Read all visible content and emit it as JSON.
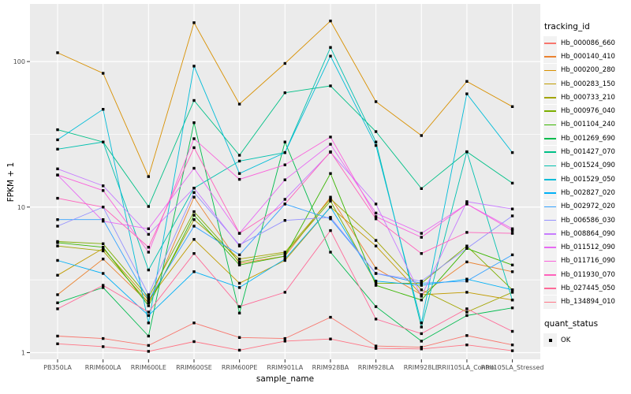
{
  "figure": {
    "panel_bg": "#EBEBEB",
    "grid_color": "#FFFFFF",
    "tick_color": "#333333",
    "tick_label_color": "#4D4D4D",
    "marker_color": "#000000"
  },
  "axes": {
    "x_title": "sample_name",
    "y_title": "FPKM + 1",
    "y_tick_labels": [
      "1",
      "10",
      "100"
    ]
  },
  "legend": {
    "tracking_title": "tracking_id",
    "quant_title": "quant_status",
    "quant_ok_label": "OK"
  },
  "chart_data": {
    "type": "line",
    "title": "",
    "xlabel": "sample_name",
    "ylabel": "FPKM + 1",
    "yscale": "log10",
    "ylim": [
      0.9,
      235
    ],
    "y_ticks": [
      1,
      10,
      100
    ],
    "y_minor_ticks": [
      3.1623,
      31.623
    ],
    "grid": true,
    "legend_position": "right",
    "legend_title": "tracking_id",
    "marker": "filled-square",
    "marker_legend": {
      "title": "quant_status",
      "items": [
        {
          "label": "OK",
          "shape": "filled-square",
          "color": "#000000"
        }
      ]
    },
    "categories": [
      "PB350LA",
      "RRIM600LA",
      "RRIM600LE",
      "RRIM600SE",
      "RRIM600PE",
      "RRIM901LA",
      "RRIM928BA",
      "RRIM928LA",
      "RRIM928LE",
      "RRII105LA_Control",
      "RRII105LA_Stressed"
    ],
    "series": [
      {
        "name": "Hb_000086_660",
        "color": "#F8766D",
        "values": [
          1.3,
          1.25,
          1.12,
          1.6,
          1.27,
          1.25,
          1.75,
          1.11,
          1.09,
          1.31,
          1.13
        ]
      },
      {
        "name": "Hb_000140_410",
        "color": "#EA8331",
        "values": [
          2.5,
          4.4,
          2.2,
          11.7,
          4.1,
          4.6,
          11.7,
          3.8,
          2.5,
          4.2,
          3.6
        ]
      },
      {
        "name": "Hb_000200_280",
        "color": "#D89000",
        "values": [
          115,
          83,
          16.2,
          185,
          51,
          97,
          190,
          53,
          31,
          73,
          49
        ]
      },
      {
        "name": "Hb_000283_150",
        "color": "#C09B00",
        "values": [
          3.4,
          5.2,
          2.3,
          6.0,
          3.0,
          4.3,
          10.0,
          5.4,
          2.5,
          2.6,
          2.3
        ]
      },
      {
        "name": "Hb_000733_210",
        "color": "#A3A500",
        "values": [
          5.4,
          5.0,
          2.2,
          8.2,
          4.4,
          4.9,
          11.4,
          5.9,
          2.7,
          1.9,
          2.6
        ]
      },
      {
        "name": "Hb_000976_040",
        "color": "#7CAE00",
        "values": [
          5.8,
          5.6,
          2.4,
          9.3,
          4.2,
          4.8,
          11.0,
          3.0,
          3.0,
          5.4,
          2.7
        ]
      },
      {
        "name": "Hb_001104_240",
        "color": "#39B600",
        "values": [
          5.7,
          5.3,
          2.1,
          8.8,
          4.0,
          4.6,
          17.0,
          2.9,
          2.3,
          5.2,
          4.0
        ]
      },
      {
        "name": "Hb_001269_690",
        "color": "#00BB4E",
        "values": [
          2.2,
          2.8,
          1.3,
          38,
          1.87,
          28,
          4.9,
          2.07,
          1.2,
          1.8,
          2.03
        ]
      },
      {
        "name": "Hb_001427_070",
        "color": "#00C087",
        "values": [
          34,
          28,
          10.1,
          54,
          22.7,
          61,
          68,
          33,
          13.4,
          24,
          14.6
        ]
      },
      {
        "name": "Hb_001524_090",
        "color": "#00C0AF",
        "values": [
          25,
          28,
          3.7,
          13.5,
          20.7,
          23.7,
          125,
          28,
          1.5,
          24,
          2.3
        ]
      },
      {
        "name": "Hb_001529_050",
        "color": "#00BCD8",
        "values": [
          29,
          47,
          1.6,
          93,
          17.0,
          23.7,
          109,
          26.5,
          1.6,
          60,
          23.7
        ]
      },
      {
        "name": "Hb_002827_020",
        "color": "#00B0F6",
        "values": [
          4.3,
          3.5,
          1.8,
          3.6,
          2.8,
          4.4,
          10.0,
          3.1,
          2.9,
          3.2,
          2.7
        ]
      },
      {
        "name": "Hb_002972_020",
        "color": "#35A2FF",
        "values": [
          8.2,
          8.2,
          2.3,
          7.4,
          4.7,
          10.5,
          8.3,
          3.5,
          3.0,
          3.1,
          4.7
        ]
      },
      {
        "name": "Hb_006586_030",
        "color": "#9590FF",
        "values": [
          7.4,
          10.0,
          2.5,
          12.6,
          5.5,
          8.1,
          8.5,
          3.5,
          3.1,
          5.2,
          8.7
        ]
      },
      {
        "name": "Hb_008864_090",
        "color": "#C77CFF",
        "values": [
          18.3,
          14.0,
          6.5,
          13.5,
          5.4,
          11.3,
          23.8,
          10.5,
          2.44,
          10.9,
          9.7
        ]
      },
      {
        "name": "Hb_011512_090",
        "color": "#E76BF3",
        "values": [
          16.6,
          8.0,
          7.1,
          18.5,
          6.6,
          15.4,
          27.0,
          9.1,
          6.6,
          10.5,
          7.1
        ]
      },
      {
        "name": "Hb_011716_090",
        "color": "#FA62DB",
        "values": [
          16.6,
          13.0,
          4.9,
          29.5,
          15.5,
          19.5,
          30.3,
          8.6,
          6.2,
          10.5,
          6.9
        ]
      },
      {
        "name": "Hb_011930_070",
        "color": "#FF62BC",
        "values": [
          11.5,
          10.0,
          5.3,
          25.6,
          6.6,
          10.5,
          24.0,
          8.3,
          4.8,
          6.7,
          6.6
        ]
      },
      {
        "name": "Hb_027445_050",
        "color": "#FF6A98",
        "values": [
          2.0,
          2.9,
          1.9,
          4.8,
          2.07,
          2.6,
          6.9,
          1.7,
          1.35,
          2.0,
          1.4
        ]
      },
      {
        "name": "Hb_134894_010",
        "color": "#FF7485",
        "values": [
          1.15,
          1.1,
          1.02,
          1.19,
          1.04,
          1.2,
          1.24,
          1.07,
          1.06,
          1.13,
          1.03
        ]
      }
    ]
  }
}
